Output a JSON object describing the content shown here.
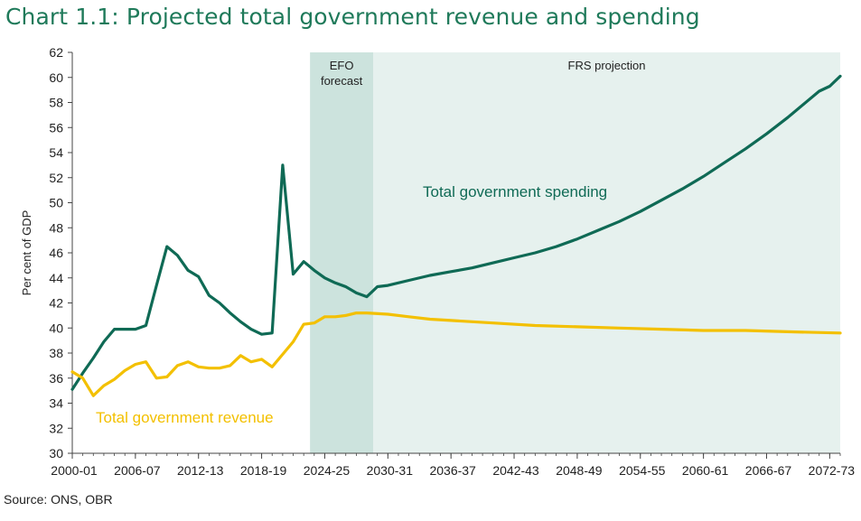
{
  "title": "Chart 1.1: Projected total government revenue and spending",
  "source": "Source: ONS, OBR",
  "colors": {
    "spending": "#0f6a55",
    "revenue": "#f3c000",
    "efo_band": "#cce3dd",
    "frs_band": "#e6f1ee",
    "title": "#1f7a5a"
  },
  "chart_data": {
    "type": "line",
    "title": "Chart 1.1: Projected total government revenue and spending",
    "ylabel": "Per cent of GDP",
    "xlabel": "",
    "ylim": [
      30,
      62
    ],
    "yticks": [
      30,
      32,
      34,
      36,
      38,
      40,
      42,
      44,
      46,
      48,
      50,
      52,
      54,
      56,
      58,
      60,
      62
    ],
    "x_start_year": 2000,
    "x_end_year": 2073,
    "xtick_labels": [
      "2000-01",
      "2006-07",
      "2012-13",
      "2018-19",
      "2024-25",
      "2030-31",
      "2036-37",
      "2042-43",
      "2048-49",
      "2054-55",
      "2060-61",
      "2066-67",
      "2072-73"
    ],
    "xtick_years": [
      2000,
      2006,
      2012,
      2018,
      2024,
      2030,
      2036,
      2042,
      2048,
      2054,
      2060,
      2066,
      2072
    ],
    "shaded_regions": [
      {
        "label_lines": [
          "EFO",
          "forecast"
        ],
        "start_year": 2022.6,
        "end_year": 2028.6,
        "kind": "efo"
      },
      {
        "label_lines": [
          "FRS projection"
        ],
        "start_year": 2028.6,
        "end_year": 2073,
        "kind": "frs"
      }
    ],
    "series": [
      {
        "name": "Total government spending",
        "color": "#0f6a55",
        "points": [
          [
            2000,
            35.1
          ],
          [
            2001,
            36.4
          ],
          [
            2002,
            37.6
          ],
          [
            2003,
            38.9
          ],
          [
            2004,
            39.9
          ],
          [
            2005,
            39.9
          ],
          [
            2006,
            39.9
          ],
          [
            2007,
            40.2
          ],
          [
            2008,
            43.4
          ],
          [
            2009,
            46.5
          ],
          [
            2010,
            45.8
          ],
          [
            2011,
            44.6
          ],
          [
            2012,
            44.1
          ],
          [
            2013,
            42.6
          ],
          [
            2014,
            42.0
          ],
          [
            2015,
            41.2
          ],
          [
            2016,
            40.5
          ],
          [
            2017,
            39.9
          ],
          [
            2018,
            39.5
          ],
          [
            2019,
            39.6
          ],
          [
            2020,
            53.0
          ],
          [
            2021,
            44.3
          ],
          [
            2022,
            45.3
          ],
          [
            2023,
            44.6
          ],
          [
            2024,
            44.0
          ],
          [
            2025,
            43.6
          ],
          [
            2026,
            43.3
          ],
          [
            2027,
            42.8
          ],
          [
            2028,
            42.5
          ],
          [
            2029,
            43.3
          ],
          [
            2030,
            43.4
          ],
          [
            2032,
            43.8
          ],
          [
            2034,
            44.2
          ],
          [
            2036,
            44.5
          ],
          [
            2038,
            44.8
          ],
          [
            2040,
            45.2
          ],
          [
            2042,
            45.6
          ],
          [
            2044,
            46.0
          ],
          [
            2046,
            46.5
          ],
          [
            2048,
            47.1
          ],
          [
            2050,
            47.8
          ],
          [
            2052,
            48.5
          ],
          [
            2054,
            49.3
          ],
          [
            2056,
            50.2
          ],
          [
            2058,
            51.1
          ],
          [
            2060,
            52.1
          ],
          [
            2062,
            53.2
          ],
          [
            2064,
            54.3
          ],
          [
            2066,
            55.5
          ],
          [
            2068,
            56.8
          ],
          [
            2070,
            58.2
          ],
          [
            2071,
            58.9
          ],
          [
            2072,
            59.3
          ],
          [
            2073,
            60.1
          ]
        ]
      },
      {
        "name": "Total government revenue",
        "color": "#f3c000",
        "points": [
          [
            2000,
            36.5
          ],
          [
            2001,
            36.0
          ],
          [
            2002,
            34.6
          ],
          [
            2003,
            35.4
          ],
          [
            2004,
            35.9
          ],
          [
            2005,
            36.6
          ],
          [
            2006,
            37.1
          ],
          [
            2007,
            37.3
          ],
          [
            2008,
            36.0
          ],
          [
            2009,
            36.1
          ],
          [
            2010,
            37.0
          ],
          [
            2011,
            37.3
          ],
          [
            2012,
            36.9
          ],
          [
            2013,
            36.8
          ],
          [
            2014,
            36.8
          ],
          [
            2015,
            37.0
          ],
          [
            2016,
            37.8
          ],
          [
            2017,
            37.3
          ],
          [
            2018,
            37.5
          ],
          [
            2019,
            36.9
          ],
          [
            2020,
            37.9
          ],
          [
            2021,
            38.9
          ],
          [
            2022,
            40.3
          ],
          [
            2023,
            40.4
          ],
          [
            2024,
            40.9
          ],
          [
            2025,
            40.9
          ],
          [
            2026,
            41.0
          ],
          [
            2027,
            41.2
          ],
          [
            2028,
            41.2
          ],
          [
            2030,
            41.1
          ],
          [
            2032,
            40.9
          ],
          [
            2034,
            40.7
          ],
          [
            2036,
            40.6
          ],
          [
            2040,
            40.4
          ],
          [
            2044,
            40.2
          ],
          [
            2048,
            40.1
          ],
          [
            2052,
            40.0
          ],
          [
            2056,
            39.9
          ],
          [
            2060,
            39.8
          ],
          [
            2064,
            39.8
          ],
          [
            2068,
            39.7
          ],
          [
            2073,
            39.6
          ]
        ]
      }
    ],
    "annotations": [
      {
        "text": "Total government spending",
        "series": "Total government spending"
      },
      {
        "text": "Total government revenue",
        "series": "Total government revenue"
      }
    ]
  }
}
